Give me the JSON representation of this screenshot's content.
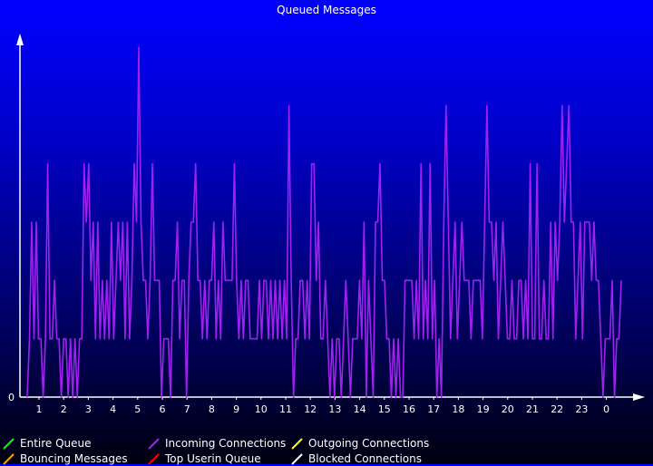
{
  "chart_data": {
    "type": "line",
    "title": "Queued Messages",
    "xlabel": "",
    "ylabel": "",
    "y_tick_labels": [
      "0"
    ],
    "x_tick_labels": [
      "1",
      "2",
      "3",
      "4",
      "5",
      "6",
      "7",
      "8",
      "9",
      "10",
      "11",
      "12",
      "13",
      "14",
      "15",
      "16",
      "17",
      "18",
      "19",
      "20",
      "21",
      "22",
      "23",
      "0"
    ],
    "ylim": [
      0,
      6
    ],
    "grid": false,
    "legend_position": "bottom",
    "series": [
      {
        "name": "Entire Queue",
        "color": "#00ff00",
        "values": []
      },
      {
        "name": "Bouncing Messages",
        "color": "#ffa500",
        "values": []
      },
      {
        "name": "Incoming Connections",
        "color": "#a020f0",
        "values": [
          0,
          1,
          3,
          1,
          3,
          1,
          1,
          0,
          1,
          4,
          1,
          1,
          2,
          1,
          1,
          0,
          1,
          1,
          0,
          1,
          0,
          1,
          0,
          1,
          1,
          4,
          3,
          4,
          2,
          3,
          1,
          3,
          1,
          2,
          1,
          2,
          1,
          3,
          1,
          2,
          3,
          2,
          3,
          1,
          3,
          1,
          2,
          4,
          3,
          6,
          3,
          2,
          2,
          1,
          2,
          4,
          2,
          2,
          2,
          0,
          1,
          1,
          1,
          0,
          2,
          2,
          3,
          1,
          2,
          2,
          0,
          2,
          3,
          3,
          4,
          2,
          2,
          1,
          2,
          1,
          2,
          2,
          3,
          1,
          2,
          1,
          3,
          2,
          2,
          2,
          2,
          4,
          2,
          1,
          2,
          1,
          2,
          2,
          1,
          1,
          1,
          1,
          2,
          1,
          2,
          2,
          1,
          2,
          1,
          2,
          1,
          2,
          1,
          2,
          1,
          5,
          2,
          0,
          1,
          1,
          2,
          2,
          1,
          2,
          1,
          4,
          4,
          2,
          3,
          1,
          1,
          2,
          1,
          0,
          1,
          0,
          1,
          1,
          0,
          1,
          2,
          1,
          0,
          1,
          1,
          1,
          2,
          1,
          3,
          0,
          2,
          1,
          0,
          3,
          3,
          4,
          2,
          2,
          1,
          1,
          0,
          1,
          0,
          1,
          0,
          0,
          2,
          2,
          2,
          2,
          1,
          2,
          1,
          4,
          1,
          2,
          1,
          4,
          1,
          2,
          0,
          1,
          0,
          3,
          5,
          3,
          1,
          2,
          3,
          1,
          2,
          3,
          2,
          2,
          2,
          1,
          2,
          2,
          2,
          2,
          1,
          3,
          5,
          3,
          3,
          2,
          3,
          1,
          2,
          3,
          2,
          1,
          1,
          2,
          1,
          1,
          2,
          2,
          1,
          2,
          1,
          4,
          1,
          1,
          4,
          1,
          1,
          2,
          1,
          1,
          3,
          1,
          3,
          2,
          3,
          5,
          3,
          4,
          5,
          3,
          3,
          1,
          2,
          3,
          1,
          3,
          3,
          3,
          2,
          3,
          2,
          2,
          1,
          0,
          1,
          1,
          1,
          2,
          0,
          1,
          1,
          2
        ]
      },
      {
        "name": "Top Userin Queue",
        "color": "#ff0000",
        "values": []
      },
      {
        "name": "Outgoing Connections",
        "color": "#ffff00",
        "values": []
      },
      {
        "name": "Blocked Connections",
        "color": "#ffffff",
        "values": []
      }
    ]
  }
}
